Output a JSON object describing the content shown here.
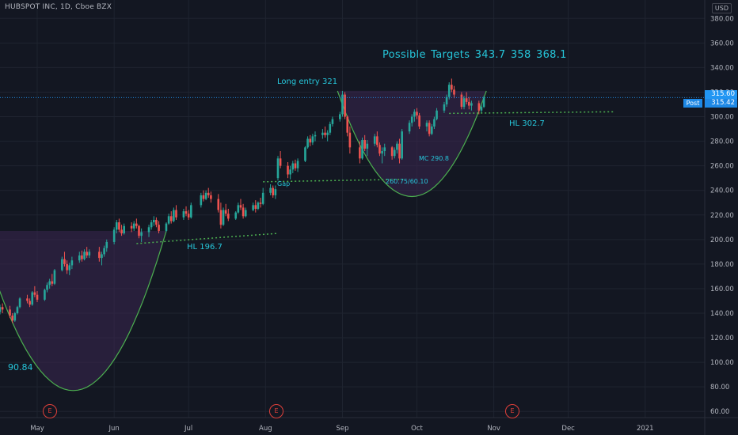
{
  "header": {
    "title": "HUBSPOT INC, 1D, Cboe BZX",
    "currency": "USD"
  },
  "annotations": {
    "targets": "Possible Targets   343.7    358    368.1",
    "long_entry": "Long entry 321",
    "hl_302": "HL 302.7",
    "hl_196": "HL 196.7",
    "gap": "Gap",
    "mc": "MC 290.8",
    "cup_low": "260.75/60.10",
    "cup_start": "90.84"
  },
  "price_tags": {
    "last": "315.60",
    "post_label": "Post",
    "post_price": "315.42"
  },
  "earnings_marker": "E",
  "colors": {
    "background": "#131722",
    "up": "#26a69a",
    "down": "#ef5350",
    "annotation": "#26c6da",
    "support_line": "#4caf50",
    "cup_fill": "#3b2650",
    "cup_outline": "#4caf50"
  },
  "chart_data": {
    "type": "candlestick",
    "title": "HUBSPOT INC, 1D, Cboe BZX",
    "y_axis_ticks": [
      60,
      80,
      100,
      120,
      140,
      160,
      180,
      200,
      220,
      240,
      260,
      280,
      300,
      320,
      340,
      360,
      380
    ],
    "y_axis_tick_labels": [
      "60.00",
      "80.00",
      "100.00",
      "120.00",
      "140.00",
      "160.00",
      "180.00",
      "200.00",
      "220.00",
      "240.00",
      "260.00",
      "280.00",
      "300.00",
      "320.00",
      "340.00",
      "360.00",
      "380.00"
    ],
    "ylim": [
      55,
      395
    ],
    "x_axis_ticks": [
      "May",
      "Jun",
      "Jul",
      "Aug",
      "Sep",
      "Oct",
      "Nov",
      "Dec",
      "2021"
    ],
    "x_axis_tick_dates": [
      "2020-05-01",
      "2020-06-01",
      "2020-07-01",
      "2020-08-01",
      "2020-09-01",
      "2020-10-01",
      "2020-11-01",
      "2020-12-01",
      "2021-01-01"
    ],
    "xlim": [
      "2020-04-16",
      "2021-01-25"
    ],
    "earnings_dates": [
      "2020-05-07",
      "2020-08-05",
      "2020-11-05"
    ],
    "last_price": 315.6,
    "post_price": 315.42,
    "candles": [
      [
        "2020-04-16",
        141,
        147,
        139,
        145
      ],
      [
        "2020-04-17",
        145,
        148,
        140,
        143
      ],
      [
        "2020-04-20",
        143,
        146,
        136,
        138
      ],
      [
        "2020-04-21",
        138,
        140,
        132,
        134
      ],
      [
        "2020-04-22",
        134,
        141,
        133,
        140
      ],
      [
        "2020-04-23",
        140,
        146,
        139,
        145
      ],
      [
        "2020-04-24",
        145,
        153,
        144,
        152
      ],
      [
        "2020-04-27",
        152,
        155,
        148,
        150
      ],
      [
        "2020-04-28",
        150,
        152,
        145,
        147
      ],
      [
        "2020-04-29",
        147,
        158,
        146,
        157
      ],
      [
        "2020-04-30",
        157,
        162,
        153,
        155
      ],
      [
        "2020-05-01",
        155,
        158,
        149,
        151
      ],
      [
        "2020-05-04",
        151,
        160,
        150,
        159
      ],
      [
        "2020-05-05",
        159,
        165,
        157,
        163
      ],
      [
        "2020-05-06",
        163,
        168,
        160,
        166
      ],
      [
        "2020-05-07",
        166,
        172,
        162,
        164
      ],
      [
        "2020-05-08",
        164,
        176,
        163,
        175
      ],
      [
        "2020-05-11",
        175,
        186,
        174,
        184
      ],
      [
        "2020-05-12",
        184,
        190,
        178,
        180
      ],
      [
        "2020-05-13",
        180,
        183,
        172,
        175
      ],
      [
        "2020-05-14",
        175,
        181,
        171,
        179
      ],
      [
        "2020-05-15",
        179,
        186,
        176,
        183
      ],
      [
        "2020-05-18",
        183,
        190,
        181,
        187
      ],
      [
        "2020-05-19",
        187,
        191,
        182,
        184
      ],
      [
        "2020-05-20",
        184,
        192,
        183,
        190
      ],
      [
        "2020-05-21",
        190,
        194,
        185,
        187
      ],
      [
        "2020-05-22",
        187,
        192,
        185,
        190
      ],
      [
        "2020-05-26",
        190,
        194,
        182,
        185
      ],
      [
        "2020-05-27",
        185,
        190,
        179,
        188
      ],
      [
        "2020-05-28",
        188,
        195,
        186,
        193
      ],
      [
        "2020-05-29",
        193,
        200,
        190,
        198
      ],
      [
        "2020-06-01",
        198,
        210,
        196,
        208
      ],
      [
        "2020-06-02",
        208,
        216,
        205,
        214
      ],
      [
        "2020-06-03",
        214,
        217,
        206,
        208
      ],
      [
        "2020-06-04",
        208,
        212,
        203,
        205
      ],
      [
        "2020-06-05",
        205,
        213,
        204,
        211
      ],
      [
        "2020-06-08",
        211,
        214,
        206,
        209
      ],
      [
        "2020-06-09",
        209,
        215,
        207,
        213
      ],
      [
        "2020-06-10",
        213,
        217,
        209,
        211
      ],
      [
        "2020-06-11",
        211,
        212,
        201,
        203
      ],
      [
        "2020-06-12",
        203,
        209,
        198,
        206
      ],
      [
        "2020-06-15",
        206,
        212,
        202,
        210
      ],
      [
        "2020-06-16",
        210,
        216,
        208,
        214
      ],
      [
        "2020-06-17",
        214,
        219,
        211,
        216
      ],
      [
        "2020-06-18",
        216,
        218,
        210,
        212
      ],
      [
        "2020-06-19",
        212,
        215,
        205,
        207
      ],
      [
        "2020-06-22",
        207,
        214,
        206,
        213
      ],
      [
        "2020-06-23",
        213,
        221,
        212,
        219
      ],
      [
        "2020-06-24",
        219,
        223,
        213,
        215
      ],
      [
        "2020-06-25",
        215,
        226,
        214,
        224
      ],
      [
        "2020-06-26",
        224,
        228,
        216,
        218
      ],
      [
        "2020-06-29",
        218,
        225,
        216,
        223
      ],
      [
        "2020-06-30",
        223,
        227,
        219,
        221
      ],
      [
        "2020-07-01",
        221,
        224,
        216,
        218
      ],
      [
        "2020-07-02",
        218,
        230,
        217,
        228
      ],
      [
        "2020-07-06",
        228,
        238,
        226,
        236
      ],
      [
        "2020-07-07",
        236,
        240,
        231,
        233
      ],
      [
        "2020-07-08",
        233,
        240,
        232,
        238
      ],
      [
        "2020-07-09",
        238,
        242,
        234,
        236
      ],
      [
        "2020-07-10",
        236,
        239,
        230,
        233
      ],
      [
        "2020-07-13",
        233,
        237,
        222,
        224
      ],
      [
        "2020-07-14",
        224,
        230,
        209,
        212
      ],
      [
        "2020-07-15",
        212,
        226,
        211,
        224
      ],
      [
        "2020-07-16",
        224,
        229,
        219,
        221
      ],
      [
        "2020-07-17",
        221,
        225,
        215,
        217
      ],
      [
        "2020-07-20",
        217,
        223,
        216,
        222
      ],
      [
        "2020-07-21",
        222,
        230,
        221,
        228
      ],
      [
        "2020-07-22",
        228,
        233,
        224,
        226
      ],
      [
        "2020-07-23",
        226,
        229,
        217,
        219
      ],
      [
        "2020-07-24",
        219,
        226,
        218,
        224
      ],
      [
        "2020-07-27",
        224,
        230,
        223,
        228
      ],
      [
        "2020-07-28",
        228,
        232,
        222,
        225
      ],
      [
        "2020-07-29",
        225,
        231,
        224,
        230
      ],
      [
        "2020-07-30",
        230,
        234,
        226,
        229
      ],
      [
        "2020-07-31",
        229,
        242,
        228,
        238
      ],
      [
        "2020-08-03",
        238,
        245,
        236,
        242
      ],
      [
        "2020-08-04",
        242,
        244,
        234,
        236
      ],
      [
        "2020-08-05",
        236,
        244,
        233,
        241
      ],
      [
        "2020-08-06",
        250,
        268,
        248,
        266
      ],
      [
        "2020-08-07",
        266,
        272,
        258,
        260
      ],
      [
        "2020-08-10",
        260,
        263,
        250,
        253
      ],
      [
        "2020-08-11",
        253,
        260,
        249,
        257
      ],
      [
        "2020-08-12",
        257,
        264,
        254,
        262
      ],
      [
        "2020-08-13",
        262,
        265,
        256,
        258
      ],
      [
        "2020-08-14",
        258,
        266,
        255,
        264
      ],
      [
        "2020-08-17",
        264,
        276,
        263,
        275
      ],
      [
        "2020-08-18",
        275,
        284,
        274,
        282
      ],
      [
        "2020-08-19",
        282,
        285,
        276,
        279
      ],
      [
        "2020-08-20",
        279,
        286,
        277,
        284
      ],
      [
        "2020-08-21",
        284,
        288,
        280,
        285
      ],
      [
        "2020-08-24",
        285,
        290,
        282,
        287
      ],
      [
        "2020-08-25",
        287,
        292,
        283,
        285
      ],
      [
        "2020-08-26",
        285,
        289,
        280,
        287
      ],
      [
        "2020-08-27",
        287,
        296,
        285,
        294
      ],
      [
        "2020-08-28",
        294,
        300,
        292,
        298
      ],
      [
        "2020-08-31",
        298,
        304,
        296,
        302
      ],
      [
        "2020-09-01",
        302,
        321,
        300,
        318
      ],
      [
        "2020-09-02",
        318,
        320,
        298,
        300
      ],
      [
        "2020-09-03",
        300,
        301,
        284,
        287
      ],
      [
        "2020-09-04",
        287,
        292,
        270,
        275
      ],
      [
        "2020-09-08",
        275,
        280,
        262,
        266
      ],
      [
        "2020-09-09",
        266,
        283,
        265,
        281
      ],
      [
        "2020-09-10",
        281,
        285,
        272,
        274
      ],
      [
        "2020-09-11",
        274,
        281,
        268,
        278
      ],
      [
        "2020-09-14",
        278,
        286,
        276,
        284
      ],
      [
        "2020-09-15",
        284,
        288,
        275,
        277
      ],
      [
        "2020-09-16",
        277,
        279,
        268,
        270
      ],
      [
        "2020-09-17",
        270,
        275,
        262,
        272
      ],
      [
        "2020-09-18",
        272,
        278,
        268,
        275
      ],
      [
        "2020-09-21",
        275,
        276,
        265,
        268
      ],
      [
        "2020-09-22",
        268,
        275,
        266,
        273
      ],
      [
        "2020-09-23",
        273,
        280,
        270,
        278
      ],
      [
        "2020-09-24",
        278,
        282,
        262,
        266
      ],
      [
        "2020-09-25",
        266,
        290,
        265,
        288
      ],
      [
        "2020-09-28",
        288,
        297,
        286,
        295
      ],
      [
        "2020-09-29",
        295,
        302,
        292,
        300
      ],
      [
        "2020-09-30",
        300,
        306,
        296,
        304
      ],
      [
        "2020-10-01",
        304,
        307,
        298,
        301
      ],
      [
        "2020-10-02",
        301,
        303,
        290,
        292
      ],
      [
        "2020-10-05",
        292,
        297,
        288,
        295
      ],
      [
        "2020-10-06",
        295,
        297,
        284,
        286
      ],
      [
        "2020-10-07",
        286,
        294,
        285,
        292
      ],
      [
        "2020-10-08",
        292,
        300,
        290,
        298
      ],
      [
        "2020-10-09",
        298,
        307,
        297,
        305
      ],
      [
        "2020-10-12",
        305,
        312,
        303,
        310
      ],
      [
        "2020-10-13",
        310,
        318,
        308,
        316
      ],
      [
        "2020-10-14",
        316,
        328,
        314,
        326
      ],
      [
        "2020-10-15",
        326,
        331,
        320,
        322
      ],
      [
        "2020-10-16",
        322,
        325,
        315,
        318
      ],
      [
        "2020-10-19",
        318,
        320,
        306,
        308
      ],
      [
        "2020-10-20",
        308,
        317,
        306,
        315
      ],
      [
        "2020-10-21",
        315,
        320,
        310,
        312
      ],
      [
        "2020-10-22",
        312,
        316,
        306,
        309
      ],
      [
        "2020-10-23",
        309,
        313,
        305,
        311
      ],
      [
        "2020-10-26",
        311,
        313,
        302,
        305
      ],
      [
        "2020-10-27",
        305,
        310,
        303,
        308
      ],
      [
        "2020-10-28",
        308,
        317,
        307,
        315.6
      ]
    ],
    "trendlines": [
      {
        "label": "HL 196.7",
        "points": [
          [
            "2020-06-10",
            196.7
          ],
          [
            "2020-08-06",
            205
          ]
        ]
      },
      {
        "label": "Gap",
        "points": [
          [
            "2020-07-31",
            247
          ],
          [
            "2020-09-26",
            249
          ]
        ]
      },
      {
        "label": "HL 302.7",
        "points": [
          [
            "2020-10-14",
            302.7
          ],
          [
            "2020-12-20",
            304
          ]
        ]
      }
    ],
    "cup_patterns": [
      {
        "from": "2020-04-08",
        "to": "2020-06-22",
        "top": 207,
        "bottom": 77,
        "label": "90.84"
      },
      {
        "from": "2020-08-30",
        "to": "2020-10-29",
        "top": 321,
        "bottom": 235,
        "label": "260.75/60.10"
      }
    ]
  }
}
